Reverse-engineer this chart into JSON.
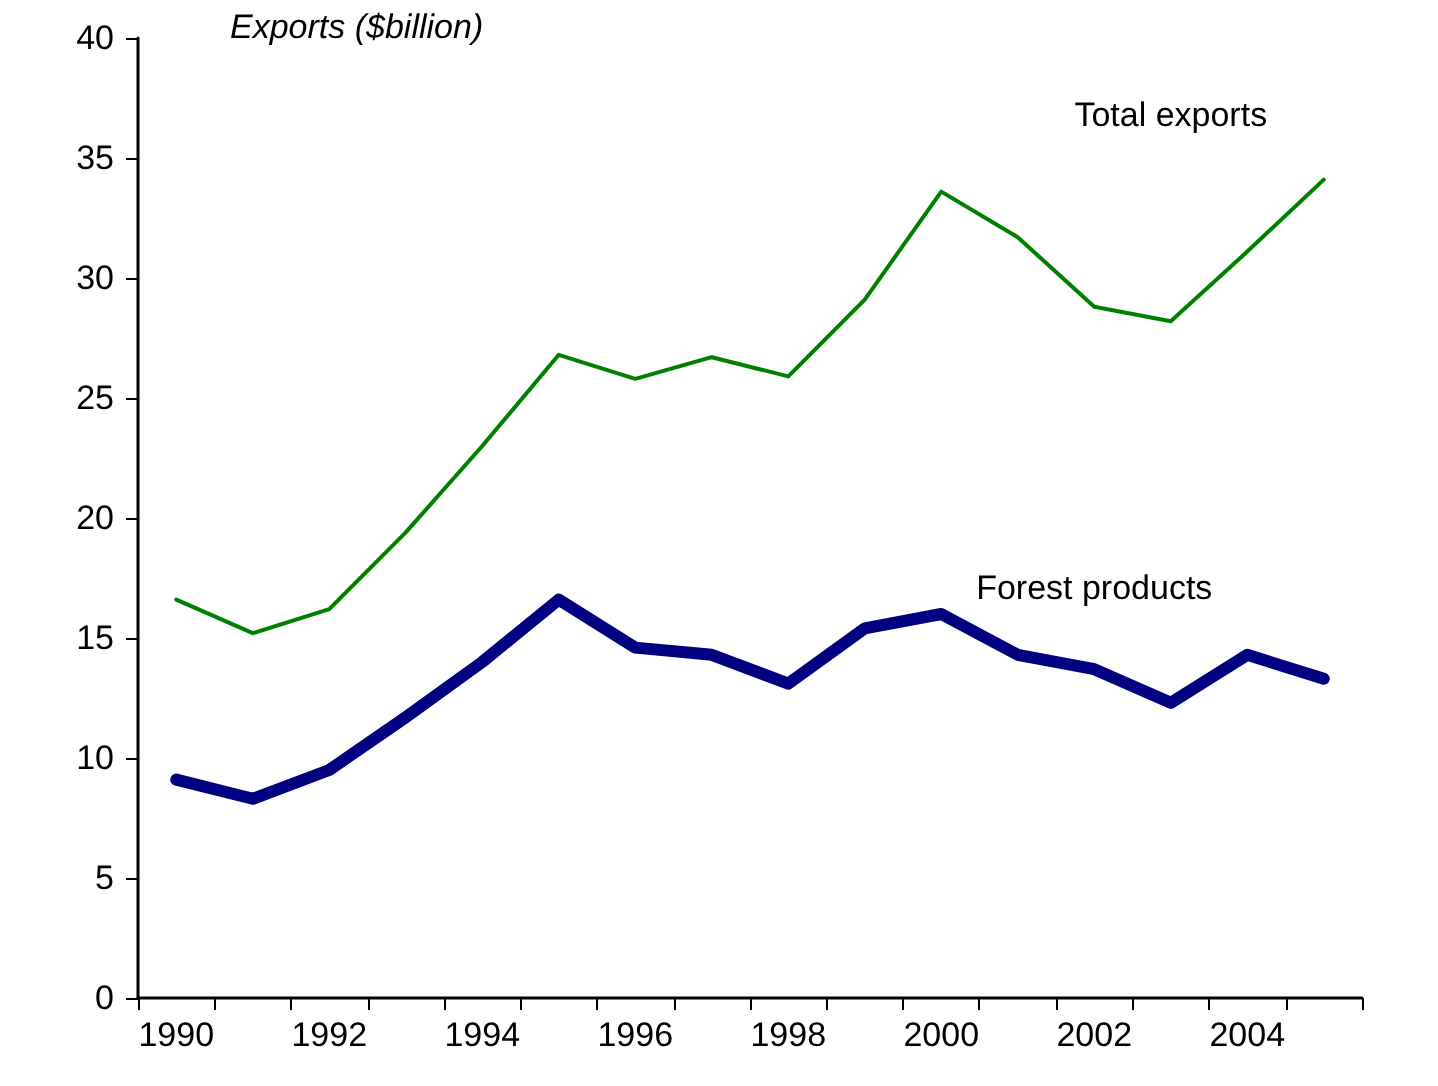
{
  "chart_data": {
    "type": "line",
    "ylabel": "Exports ($billion)",
    "categories": [
      "1990",
      null,
      "1992",
      null,
      "1994",
      null,
      "1996",
      null,
      "1998",
      null,
      "2000",
      null,
      "2002",
      null,
      "2004",
      null
    ],
    "series": [
      {
        "name": "Total exports",
        "color": "#008000",
        "values": [
          16.6,
          15.2,
          16.2,
          19.4,
          23.0,
          26.8,
          25.8,
          26.7,
          25.9,
          29.1,
          33.6,
          31.7,
          28.8,
          28.2,
          31.1,
          34.1
        ]
      },
      {
        "name": "Forest products",
        "color": "#000080",
        "values": [
          9.1,
          8.3,
          9.5,
          11.7,
          14.0,
          16.6,
          14.6,
          14.3,
          13.1,
          15.4,
          16.0,
          14.3,
          13.7,
          12.3,
          14.3,
          13.3
        ]
      }
    ],
    "ylim": [
      0,
      40
    ],
    "yticks": [
      0,
      5,
      10,
      15,
      20,
      25,
      30,
      35,
      40
    ],
    "grid": false,
    "legend": false,
    "marker": "none",
    "line_style": "solid"
  }
}
